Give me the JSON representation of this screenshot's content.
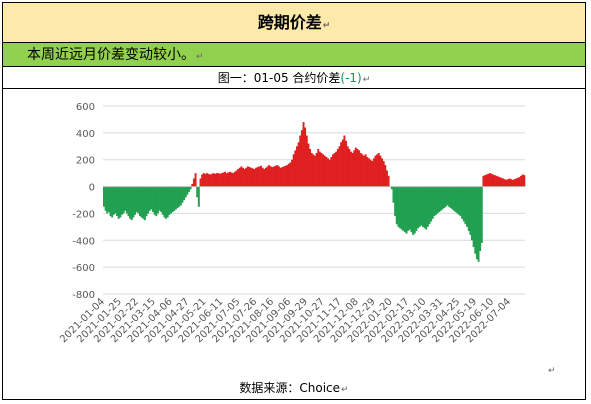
{
  "doc": {
    "title": "跨期价差",
    "summary": "本周近远月价差变动较小。",
    "caption_prefix": "图一：01-05 合约价差",
    "caption_suffix": "(-1)",
    "source": "数据来源：Choice",
    "mark_glyph": "↵"
  },
  "chart_data": {
    "type": "bar",
    "title": "",
    "xlabel": "",
    "ylabel": "",
    "ylim": [
      -800,
      600
    ],
    "yticks": [
      600,
      400,
      200,
      0,
      -200,
      -400,
      -600,
      -800
    ],
    "ytick_labels": [
      "600",
      "400",
      "200",
      "0",
      "-200",
      "-400",
      "-600",
      "-800"
    ],
    "x_range": [
      "2021-01-04",
      "2022-07-29"
    ],
    "xtick_labels": [
      "2021-01-04",
      "2021-01-25",
      "2021-02-22",
      "2021-03-15",
      "2021-04-06",
      "2021-04-27",
      "2021-05-21",
      "2021-06-11",
      "2021-07-05",
      "2021-07-26",
      "2021-08-16",
      "2021-09-06",
      "2021-09-29",
      "2021-10-27",
      "2021-11-17",
      "2021-12-08",
      "2021-12-29",
      "2022-01-20",
      "2022-02-17",
      "2022-03-10",
      "2022-03-31",
      "2022-04-25",
      "2022-05-19",
      "2022-06-10",
      "2022-07-04"
    ],
    "positive_color": "#e02020",
    "negative_color": "#20a050",
    "grid": true,
    "legend": "none",
    "series": [
      {
        "values": [
          -150,
          -180,
          -200,
          -190,
          -220,
          -230,
          -210,
          -200,
          -220,
          -240,
          -230,
          -210,
          -200,
          -180,
          -200,
          -220,
          -240,
          -250,
          -230,
          -210,
          -190,
          -200,
          -220,
          -230,
          -240,
          -250,
          -220,
          -200,
          -180,
          -170,
          -190,
          -210,
          -220,
          -200,
          -180,
          -190,
          -210,
          -230,
          -240,
          -230,
          -210,
          -200,
          -190,
          -180,
          -170,
          -160,
          -150,
          -140,
          -120,
          -100,
          -80,
          -60,
          -40,
          -20,
          20,
          60,
          100,
          -80,
          -150,
          60,
          90,
          100,
          95,
          100,
          95,
          90,
          95,
          100,
          95,
          100,
          100,
          95,
          100,
          105,
          110,
          100,
          105,
          110,
          105,
          100,
          110,
          120,
          130,
          140,
          150,
          140,
          130,
          140,
          150,
          145,
          140,
          135,
          130,
          140,
          145,
          150,
          155,
          140,
          130,
          140,
          150,
          160,
          150,
          145,
          150,
          155,
          160,
          150,
          140,
          145,
          150,
          155,
          160,
          170,
          180,
          200,
          240,
          270,
          300,
          330,
          380,
          420,
          480,
          440,
          380,
          320,
          280,
          250,
          240,
          230,
          250,
          280,
          260,
          250,
          240,
          230,
          220,
          210,
          200,
          220,
          240,
          250,
          260,
          280,
          300,
          330,
          350,
          380,
          340,
          300,
          280,
          260,
          250,
          270,
          290,
          280,
          270,
          250,
          240,
          230,
          240,
          220,
          210,
          200,
          190,
          210,
          230,
          240,
          250,
          230,
          210,
          190,
          160,
          120,
          80,
          0,
          -20,
          -120,
          -220,
          -280,
          -300,
          -310,
          -320,
          -330,
          -340,
          -350,
          -330,
          -320,
          -340,
          -360,
          -350,
          -330,
          -310,
          -300,
          -290,
          -300,
          -310,
          -320,
          -300,
          -280,
          -260,
          -240,
          -220,
          -210,
          -200,
          -190,
          -180,
          -170,
          -160,
          -150,
          -140,
          -150,
          -160,
          -170,
          -180,
          -190,
          -200,
          -210,
          -220,
          -240,
          -260,
          -280,
          -300,
          -330,
          -360,
          -400,
          -450,
          -500,
          -540,
          -560,
          -480,
          -420,
          80,
          85,
          90,
          95,
          100,
          95,
          90,
          85,
          80,
          75,
          70,
          65,
          60,
          55,
          50,
          55,
          60,
          55,
          50,
          55,
          60,
          65,
          70,
          80,
          90,
          85
        ]
      }
    ]
  }
}
